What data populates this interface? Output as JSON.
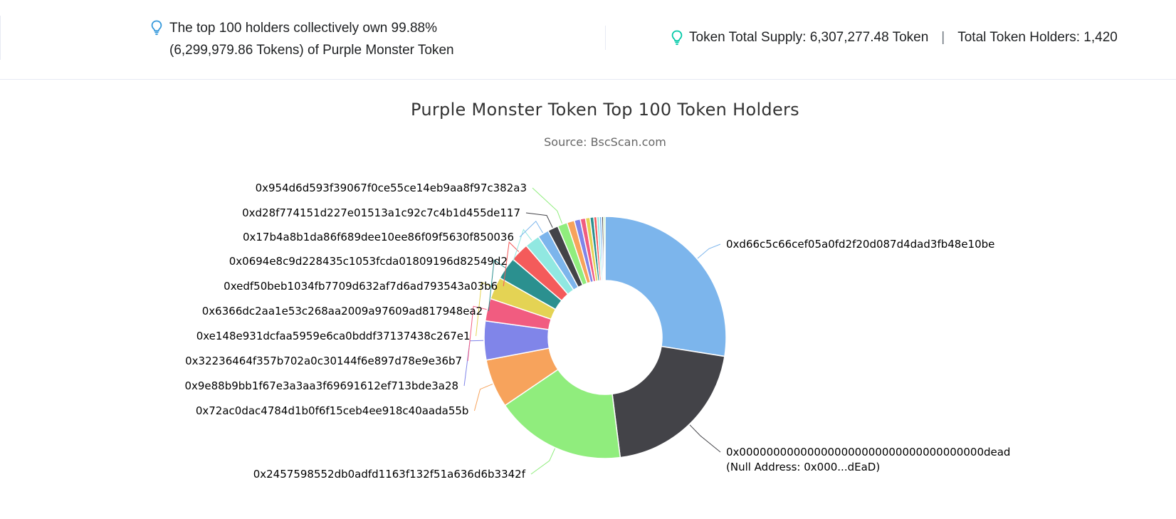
{
  "summary": {
    "line1": "The top 100 holders collectively own 99.88%",
    "line2": "(6,299,979.86 Tokens) of Purple Monster Token"
  },
  "supply": {
    "total_supply": "Token Total Supply: 6,307,277.48 Token",
    "separator": "|",
    "total_holders": "Total Token Holders: 1,420"
  },
  "colors": {
    "bulb_left": "#3498db",
    "bulb_right": "#00c9a7"
  },
  "icons": {
    "summary": "lightbulb-icon",
    "supply": "lightbulb-icon"
  },
  "chart_data": {
    "type": "pie",
    "variant": "donut",
    "title": "Purple Monster Token Top 100 Token Holders",
    "subtitle": "Source: BscScan.com",
    "slices": [
      {
        "name": "0xd66c5c66cef05a0fd2f20d087d4dad3fb48e10be",
        "value": 27.5,
        "color": "#7cb5ec",
        "labeled": true
      },
      {
        "name": "0x000000000000000000000000000000000000dead",
        "sublabel": "(Null Address: 0x000...dEaD)",
        "value": 20.5,
        "color": "#434348",
        "labeled": true
      },
      {
        "name": "0x2457598552db0adfd1163f132f51a636d6b3342f",
        "value": 17.5,
        "color": "#90ed7d",
        "labeled": true
      },
      {
        "name": "0x72ac0dac4784d1b0f6f15ceb4ee918c40aada55b",
        "value": 6.5,
        "color": "#f7a35c",
        "labeled": true
      },
      {
        "name": "0x9e88b9bb1f67e3a3aa3f69691612ef713bde3a28",
        "value": 5.2,
        "color": "#8085e9",
        "labeled": true
      },
      {
        "name": "0x32236464f357b702a0c30144f6e897d78e9e36b7",
        "value": 3.0,
        "color": "#f15c80",
        "labeled": true
      },
      {
        "name": "0xe148e931dcfaa5959e6ca0bddf37137438c267e1",
        "value": 3.0,
        "color": "#e4d354",
        "labeled": true
      },
      {
        "name": "0x6366dc2aa1e53c268aa2009a97609ad817948ea2",
        "value": 3.0,
        "color": "#2b908f",
        "labeled": true
      },
      {
        "name": "0xedf50beb1034fb7709d632af7d6ad793543a03b6",
        "value": 2.5,
        "color": "#f45b5b",
        "labeled": true
      },
      {
        "name": "0x0694e8c9d228435c1053fcda01809196d82549d2",
        "value": 2.0,
        "color": "#91e8e1",
        "labeled": true
      },
      {
        "name": "0x17b4a8b1da86f689dee10ee86f09f5630f850036",
        "value": 1.5,
        "color": "#7cb5ec",
        "labeled": true
      },
      {
        "name": "0xd28f774151d227e01513a1c92c7c4b1d455de117",
        "value": 1.4,
        "color": "#434348",
        "labeled": true
      },
      {
        "name": "0x954d6d593f39067f0ce55ce14eb9aa8f97c382a3",
        "value": 1.3,
        "color": "#90ed7d",
        "labeled": true
      },
      {
        "name": "",
        "value": 1.0,
        "color": "#f7a35c",
        "labeled": false
      },
      {
        "name": "",
        "value": 0.8,
        "color": "#8085e9",
        "labeled": false
      },
      {
        "name": "",
        "value": 0.7,
        "color": "#f15c80",
        "labeled": false
      },
      {
        "name": "",
        "value": 0.6,
        "color": "#e4d354",
        "labeled": false
      },
      {
        "name": "",
        "value": 0.5,
        "color": "#2b908f",
        "labeled": false
      },
      {
        "name": "",
        "value": 0.4,
        "color": "#f45b5b",
        "labeled": false
      },
      {
        "name": "",
        "value": 0.35,
        "color": "#91e8e1",
        "labeled": false
      },
      {
        "name": "",
        "value": 0.3,
        "color": "#7cb5ec",
        "labeled": false
      },
      {
        "name": "",
        "value": 0.25,
        "color": "#434348",
        "labeled": false
      },
      {
        "name": "",
        "value": 0.2,
        "color": "#90ed7d",
        "labeled": false
      }
    ]
  }
}
